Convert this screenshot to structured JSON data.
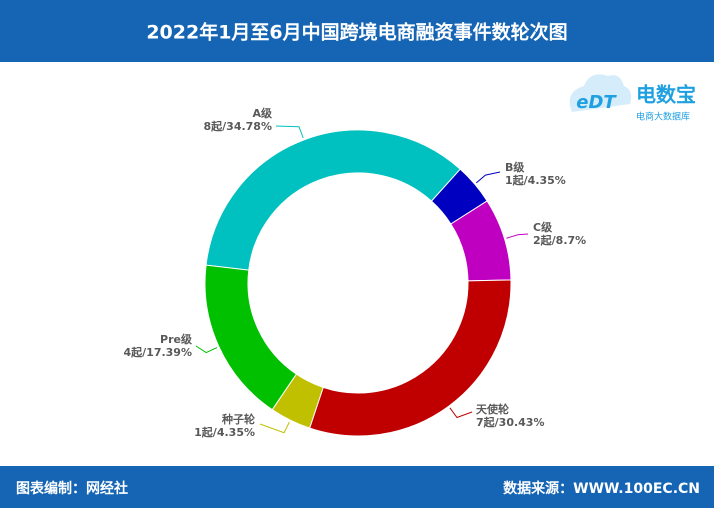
{
  "chart_data": {
    "type": "pie",
    "title": "2022年1月至6月中国跨境电商融资事件数轮次图",
    "categories": [
      "A级",
      "B级",
      "C级",
      "天使轮",
      "种子轮",
      "Pre级"
    ],
    "values": [
      8,
      1,
      2,
      7,
      1,
      4
    ],
    "value_labels": [
      "8起/34.78%",
      "1起/4.35%",
      "2起/8.7%",
      "7起/30.43%",
      "1起/4.35%",
      "4起/17.39%"
    ],
    "colors": [
      "#00c0c0",
      "#0000c0",
      "#c000c0",
      "#c00000",
      "#c0c000",
      "#00c000"
    ],
    "donut": true
  },
  "logo": {
    "mark": "eDT",
    "brand": "电数宝",
    "tagline": "电商大数据库"
  },
  "footer": {
    "left": "图表编制：网经社",
    "right": "数据来源：WWW.100EC.CN"
  }
}
